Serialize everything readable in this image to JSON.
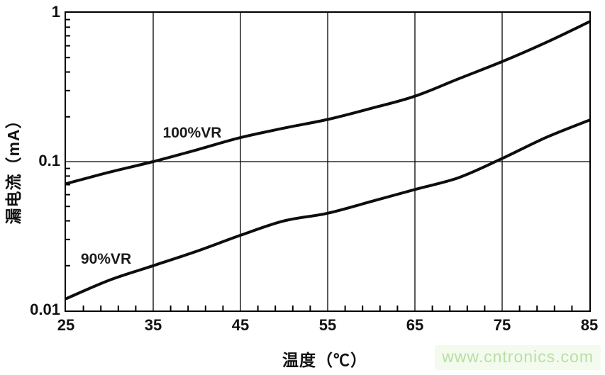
{
  "watermark": {
    "text": "www.cntronics.com",
    "color": "#b9dfa4",
    "bg": "#f3faee"
  },
  "chart_data": {
    "type": "line",
    "title": "",
    "xlabel": "温度（℃）",
    "ylabel": "漏电流（mA）",
    "x_axis": {
      "min": 25,
      "max": 85,
      "major_ticks": [
        25,
        35,
        45,
        55,
        65,
        75,
        85
      ],
      "minor_step": 2
    },
    "y_axis": {
      "scale": "log",
      "min": 0.01,
      "max": 1,
      "major_ticks": [
        1,
        0.1,
        0.01
      ],
      "tick_labels": [
        "1",
        "0.1",
        "0.01"
      ]
    },
    "grid": {
      "vertical_x": [
        35,
        45,
        55,
        65,
        75
      ],
      "horizontal_y": [
        0.1
      ]
    },
    "line_color": "#0d0d0d",
    "series": [
      {
        "name": "100%VR",
        "x": [
          25,
          30,
          35,
          40,
          45,
          50,
          55,
          60,
          65,
          70,
          75,
          80,
          85
        ],
        "y": [
          0.071,
          0.085,
          0.1,
          0.12,
          0.145,
          0.168,
          0.192,
          0.228,
          0.275,
          0.36,
          0.47,
          0.63,
          0.87
        ],
        "label": {
          "text": "100%VR",
          "x": 36.1,
          "y": 0.155
        }
      },
      {
        "name": "90%VR",
        "x": [
          25,
          30,
          35,
          40,
          45,
          50,
          55,
          60,
          65,
          70,
          75,
          80,
          85
        ],
        "y": [
          0.012,
          0.016,
          0.02,
          0.025,
          0.032,
          0.04,
          0.045,
          0.054,
          0.065,
          0.078,
          0.105,
          0.145,
          0.19
        ],
        "label": {
          "text": "90%VR",
          "x": 26.7,
          "y": 0.022
        }
      }
    ]
  }
}
